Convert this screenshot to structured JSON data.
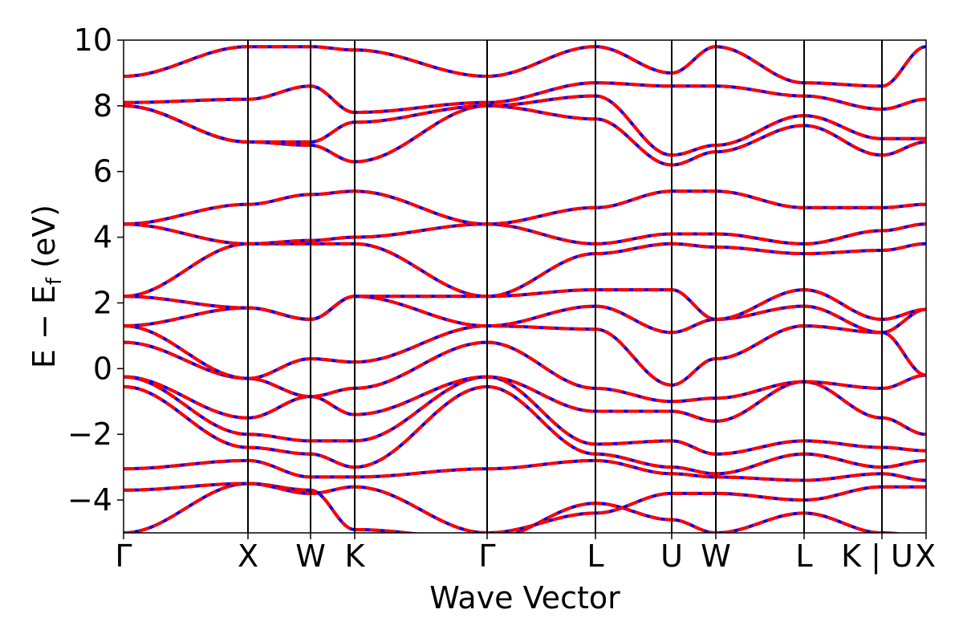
{
  "chart_data": {
    "type": "line",
    "title": "",
    "xlabel": "Wave Vector",
    "ylabel": "E − E_f (eV)",
    "ylabel_parts": {
      "main": "E − E",
      "sub": "f",
      "unit": " (eV)"
    },
    "ylim": [
      -5,
      10
    ],
    "yticks": [
      {
        "value": -4,
        "label": "−4"
      },
      {
        "value": -2,
        "label": "−2"
      },
      {
        "value": 0,
        "label": "0"
      },
      {
        "value": 2,
        "label": "2"
      },
      {
        "value": 4,
        "label": "4"
      },
      {
        "value": 6,
        "label": "6"
      },
      {
        "value": 8,
        "label": "8"
      },
      {
        "value": 10,
        "label": "10"
      }
    ],
    "xlim": [
      0,
      10
    ],
    "kpoints": [
      {
        "label": "Γ",
        "x": 0
      },
      {
        "label": "X",
        "x": 1.55
      },
      {
        "label": "W",
        "x": 2.33
      },
      {
        "label": "K",
        "x": 2.88
      },
      {
        "label": "Γ",
        "x": 4.53
      },
      {
        "label": "L",
        "x": 5.88
      },
      {
        "label": "U",
        "x": 6.83
      },
      {
        "label": "W",
        "x": 7.38
      },
      {
        "label": "L",
        "x": 8.48
      },
      {
        "label": "K | U",
        "x": 9.45
      },
      {
        "label": "X",
        "x": 10
      }
    ],
    "grid": false,
    "legend": "none",
    "line_styles": {
      "series_a": {
        "color": "#0000ff",
        "style": "solid"
      },
      "series_b": {
        "color": "#ff0000",
        "style": "dashed"
      }
    },
    "series": [
      {
        "x": [
          0,
          1.55,
          2.33,
          2.88,
          4.53,
          5.88,
          6.83,
          7.38,
          8.48,
          9.45,
          10
        ],
        "y": [
          -5.0,
          -3.5,
          -3.7,
          -4.9,
          -5.2,
          -4.1,
          -4.6,
          -5.0,
          -4.4,
          -5.0,
          -5.1
        ]
      },
      {
        "x": [
          0,
          1.55,
          2.33,
          2.88,
          4.53,
          5.88,
          6.83,
          7.38,
          8.48,
          9.45,
          10
        ],
        "y": [
          -3.7,
          -3.5,
          -3.8,
          -3.6,
          -5.0,
          -4.4,
          -3.8,
          -3.8,
          -4.0,
          -3.6,
          -3.6
        ]
      },
      {
        "x": [
          0,
          1.55,
          2.33,
          2.88,
          4.53,
          5.88,
          6.83,
          7.38,
          8.48,
          9.45,
          10
        ],
        "y": [
          -3.05,
          -2.8,
          -3.3,
          -3.3,
          -3.05,
          -2.8,
          -3.2,
          -3.3,
          -3.4,
          -3.2,
          -3.4
        ]
      },
      {
        "x": [
          0,
          1.55,
          2.33,
          2.88,
          4.53,
          5.88,
          6.83,
          7.38,
          8.48,
          9.45,
          10
        ],
        "y": [
          -0.55,
          -2.4,
          -2.6,
          -3.0,
          -0.55,
          -2.6,
          -3.0,
          -3.2,
          -2.6,
          -3.0,
          -2.8
        ]
      },
      {
        "x": [
          0,
          1.55,
          2.33,
          2.88,
          4.53,
          5.88,
          6.83,
          7.38,
          8.48,
          9.45,
          10
        ],
        "y": [
          -0.25,
          -2.0,
          -2.2,
          -2.2,
          -0.25,
          -2.3,
          -2.2,
          -2.6,
          -2.2,
          -2.4,
          -2.5
        ]
      },
      {
        "x": [
          0,
          1.55,
          2.33,
          2.88,
          4.53,
          5.88,
          6.83,
          7.38,
          8.48,
          9.45,
          10
        ],
        "y": [
          -0.25,
          -1.5,
          -0.85,
          -1.4,
          -0.25,
          -1.3,
          -1.3,
          -1.6,
          -0.4,
          -1.5,
          -2.0
        ]
      },
      {
        "x": [
          0,
          1.55,
          2.33,
          2.88,
          4.53,
          5.88,
          6.83,
          7.38,
          8.48,
          9.45,
          10
        ],
        "y": [
          0.8,
          -0.3,
          -0.85,
          -0.6,
          0.8,
          -0.6,
          -1.0,
          -0.9,
          -0.4,
          -0.6,
          -0.2
        ]
      },
      {
        "x": [
          0,
          1.55,
          2.33,
          2.88,
          4.53,
          5.88,
          6.83,
          7.38,
          8.48,
          9.45,
          10
        ],
        "y": [
          1.3,
          -0.3,
          0.3,
          0.2,
          1.3,
          1.2,
          -0.5,
          0.3,
          1.3,
          1.1,
          -0.2
        ]
      },
      {
        "x": [
          0,
          1.55,
          2.33,
          2.88,
          4.53,
          5.88,
          6.83,
          7.38,
          8.48,
          9.45,
          10
        ],
        "y": [
          1.3,
          1.85,
          1.5,
          2.2,
          1.3,
          1.9,
          1.1,
          1.5,
          1.9,
          1.1,
          1.8
        ]
      },
      {
        "x": [
          0,
          1.55,
          2.33,
          2.88,
          4.53,
          5.88,
          6.83,
          7.38,
          8.48,
          9.45,
          10
        ],
        "y": [
          2.2,
          1.85,
          1.5,
          2.2,
          2.2,
          2.4,
          2.4,
          1.5,
          2.4,
          1.5,
          1.8
        ]
      },
      {
        "x": [
          0,
          1.55,
          2.33,
          2.88,
          4.53,
          5.88,
          6.83,
          7.38,
          8.48,
          9.45,
          10
        ],
        "y": [
          2.2,
          3.8,
          3.8,
          3.8,
          2.2,
          3.5,
          3.8,
          3.7,
          3.5,
          3.6,
          3.8
        ]
      },
      {
        "x": [
          0,
          1.55,
          2.33,
          2.88,
          4.53,
          5.88,
          6.83,
          7.38,
          8.48,
          9.45,
          10
        ],
        "y": [
          4.4,
          3.8,
          3.9,
          4.0,
          4.4,
          3.8,
          4.1,
          4.1,
          3.8,
          4.2,
          4.4
        ]
      },
      {
        "x": [
          0,
          1.55,
          2.33,
          2.88,
          4.53,
          5.88,
          6.83,
          7.38,
          8.48,
          9.45,
          10
        ],
        "y": [
          4.4,
          5.0,
          5.3,
          5.4,
          4.4,
          4.9,
          5.4,
          5.4,
          4.9,
          4.9,
          5.0
        ]
      },
      {
        "x": [
          0,
          1.55,
          2.33,
          2.88,
          4.53,
          5.88,
          6.83,
          7.38,
          8.48,
          9.45,
          10
        ],
        "y": [
          8.0,
          6.9,
          6.8,
          6.3,
          8.0,
          7.6,
          6.2,
          6.6,
          7.4,
          6.5,
          6.9
        ]
      },
      {
        "x": [
          0,
          1.55,
          2.33,
          2.88,
          4.53,
          5.88,
          6.83,
          7.38,
          8.48,
          9.45,
          10
        ],
        "y": [
          8.0,
          6.9,
          6.9,
          7.5,
          8.0,
          8.3,
          6.5,
          6.8,
          7.7,
          7.0,
          7.0
        ]
      },
      {
        "x": [
          0,
          1.55,
          2.33,
          2.88,
          4.53,
          5.88,
          6.83,
          7.38,
          8.48,
          9.45,
          10
        ],
        "y": [
          8.1,
          8.2,
          8.6,
          7.8,
          8.1,
          8.7,
          8.6,
          8.6,
          8.3,
          7.9,
          8.2
        ]
      },
      {
        "x": [
          0,
          1.55,
          2.33,
          2.88,
          4.53,
          5.88,
          6.83,
          7.38,
          8.48,
          9.45,
          10
        ],
        "y": [
          8.9,
          9.8,
          9.8,
          9.7,
          8.9,
          9.8,
          9.0,
          9.8,
          8.7,
          8.6,
          9.8
        ]
      }
    ]
  }
}
